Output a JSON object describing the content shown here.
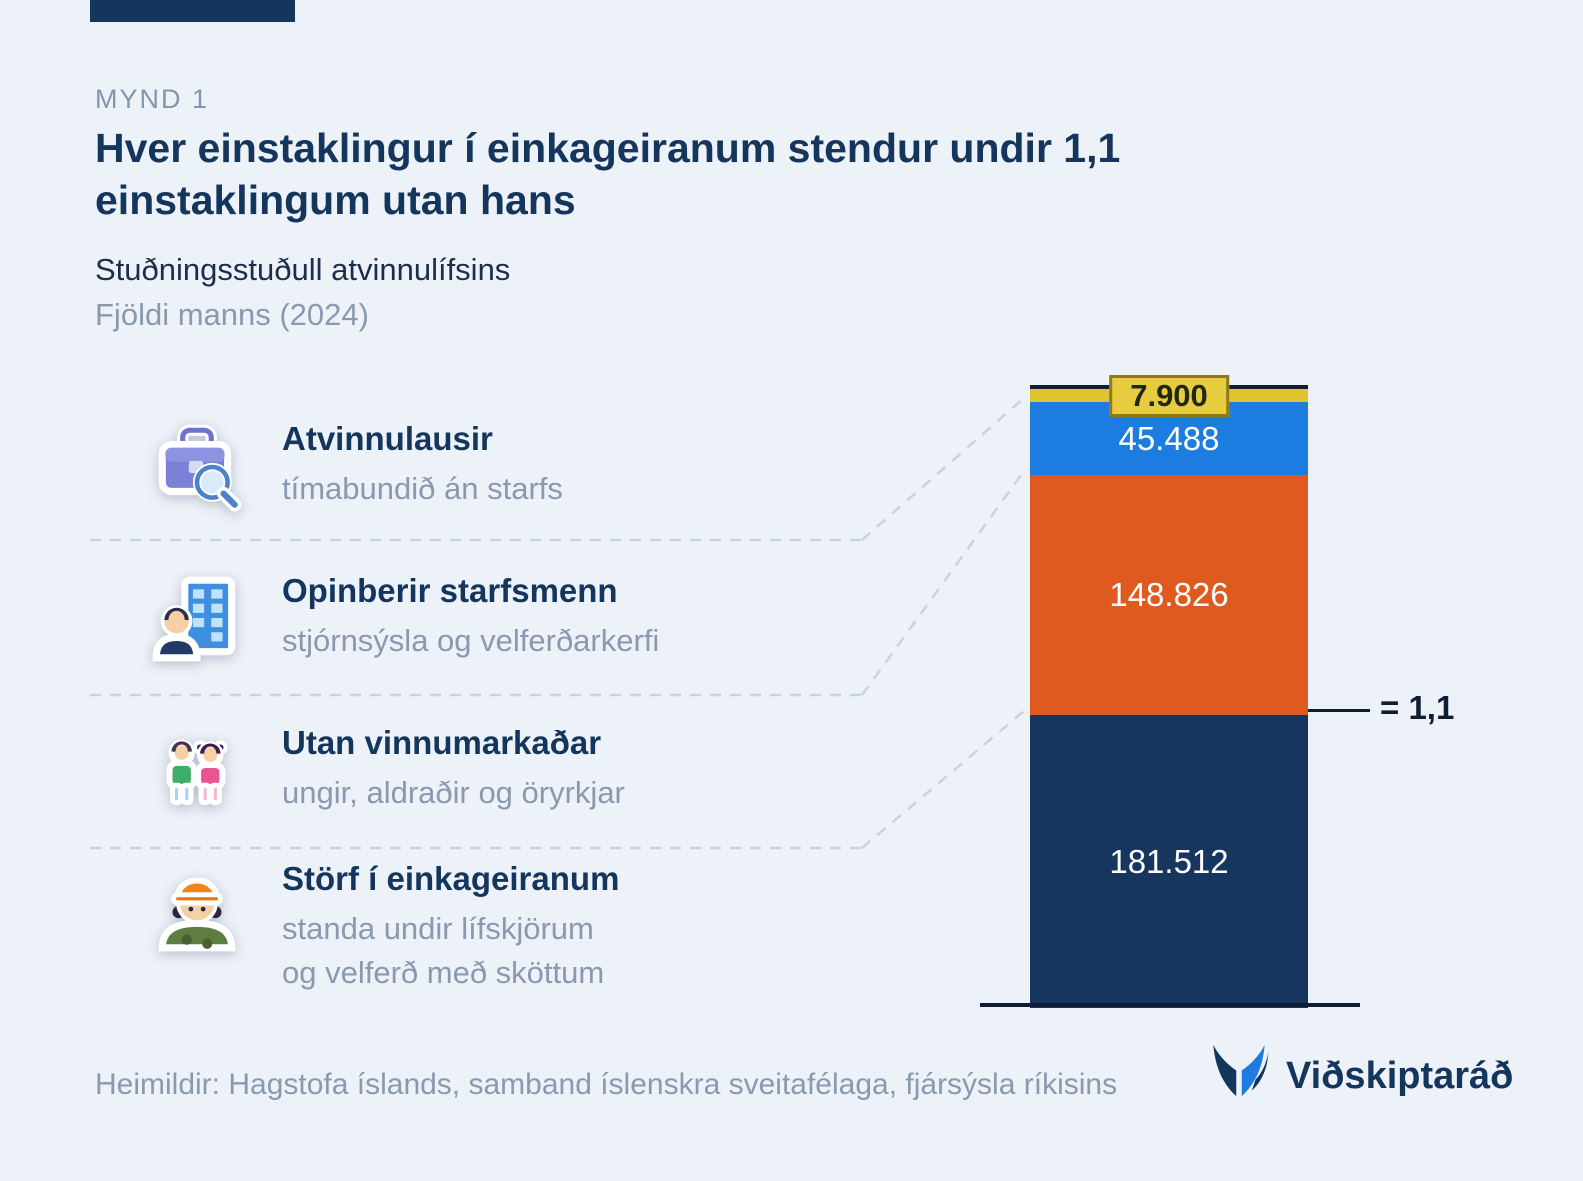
{
  "colors": {
    "background": "#edf1f8",
    "navy": "#14365c",
    "gray_text": "#8a99b0",
    "dashed_line": "#c8d3e1",
    "axis_line": "#101c33"
  },
  "header": {
    "kicker": "MYND 1",
    "title": "Hver einstaklingur í einkageiranum stendur undir 1,1 einstaklingum utan hans",
    "subtitle": "Stuðningsstuðull atvinnulífsins",
    "unit": "Fjöldi manns (2024)"
  },
  "legend": [
    {
      "icon": "briefcase-search-icon",
      "title": "Atvinnulausir",
      "desc": "tímabundið án starfs"
    },
    {
      "icon": "public-employee-icon",
      "title": "Opinberir starfsmenn",
      "desc": "stjórnsýsla og velferðarkerfi"
    },
    {
      "icon": "people-icon",
      "title": "Utan vinnumarkaðar",
      "desc": "ungir, aldraðir og öryrkjar"
    },
    {
      "icon": "construction-worker-icon",
      "title": "Störf í einkageiranum",
      "desc": "standa undir lífskjörum\nog velferð með sköttum"
    }
  ],
  "chart_data": {
    "type": "bar",
    "stacked": true,
    "title": "Stuðningsstuðull atvinnulífsins",
    "unit": "Fjöldi manns (2024)",
    "segments": [
      {
        "label": "Atvinnulausir",
        "value": 7900,
        "display": "7.900",
        "color": "#dfc32f"
      },
      {
        "label": "Opinberir starfsmenn",
        "value": 45488,
        "display": "45.488",
        "color": "#1d7ce0"
      },
      {
        "label": "Utan vinnumarkaðar",
        "value": 148826,
        "display": "148.826",
        "color": "#df5a1e"
      },
      {
        "label": "Störf í einkageiranum",
        "value": 181512,
        "display": "181.512",
        "color": "#16365f"
      }
    ],
    "annotation": "= 1,1"
  },
  "footer": {
    "source": "Heimildir: Hagstofa íslands, samband íslenskra sveitafélaga, fjársýsla ríkisins",
    "brand": "Viðskiptaráð"
  }
}
